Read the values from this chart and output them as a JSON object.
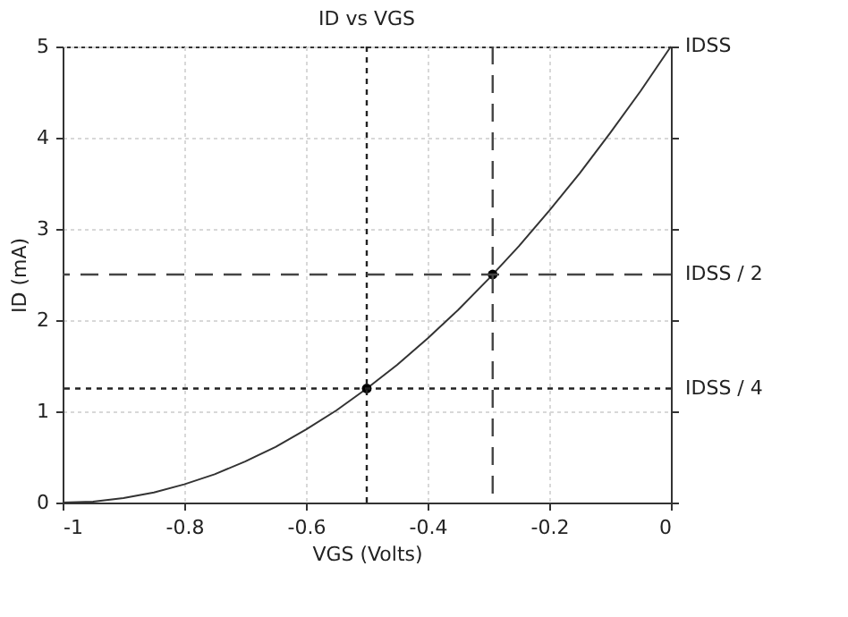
{
  "chart_data": {
    "type": "line",
    "title": "ID vs VGS",
    "xlabel": "VGS (Volts)",
    "ylabel": "ID (mA)",
    "x": [
      -1,
      -0.95,
      -0.9,
      -0.85,
      -0.8,
      -0.75,
      -0.7,
      -0.65,
      -0.6,
      -0.55,
      -0.5,
      -0.45,
      -0.4,
      -0.35,
      -0.3,
      -0.25,
      -0.2,
      -0.15,
      -0.1,
      -0.05,
      0
    ],
    "series": [
      {
        "color": "#333333",
        "marker": "none",
        "line_style": "solid",
        "values": [
          0,
          0.01,
          0.05,
          0.11,
          0.2,
          0.31,
          0.45,
          0.61,
          0.8,
          1.01,
          1.25,
          1.51,
          1.8,
          2.11,
          2.45,
          2.81,
          3.2,
          3.61,
          4.05,
          4.51,
          5
        ]
      },
      {
        "type": "scatter",
        "color": "#000000",
        "marker": "circle",
        "x": [
          -0.5,
          -0.293
        ],
        "values": [
          1.25,
          2.5
        ]
      }
    ],
    "xlim": [
      -1,
      0
    ],
    "xticks": [
      -1,
      -0.8,
      -0.6,
      -0.4,
      -0.2,
      0
    ],
    "ylim": [
      0,
      5
    ],
    "yticks": [
      0,
      1,
      2,
      3,
      4,
      5
    ],
    "ref_lines": [
      {
        "axis": "x",
        "value": -0.5,
        "color": "#222222",
        "line_style": "dotted"
      },
      {
        "axis": "x",
        "value": -0.293,
        "color": "#444444",
        "line_style": "dashed"
      },
      {
        "axis": "y",
        "value": 2.5,
        "color": "#444444",
        "line_style": "dashed",
        "label": "IDSS / 2"
      },
      {
        "axis": "y",
        "value": 1.25,
        "color": "#222222",
        "line_style": "dotted",
        "label": "IDSS / 4"
      }
    ],
    "annotations": [
      {
        "text": "IDSS",
        "x": 0,
        "y": 5
      }
    ],
    "grid": true
  }
}
